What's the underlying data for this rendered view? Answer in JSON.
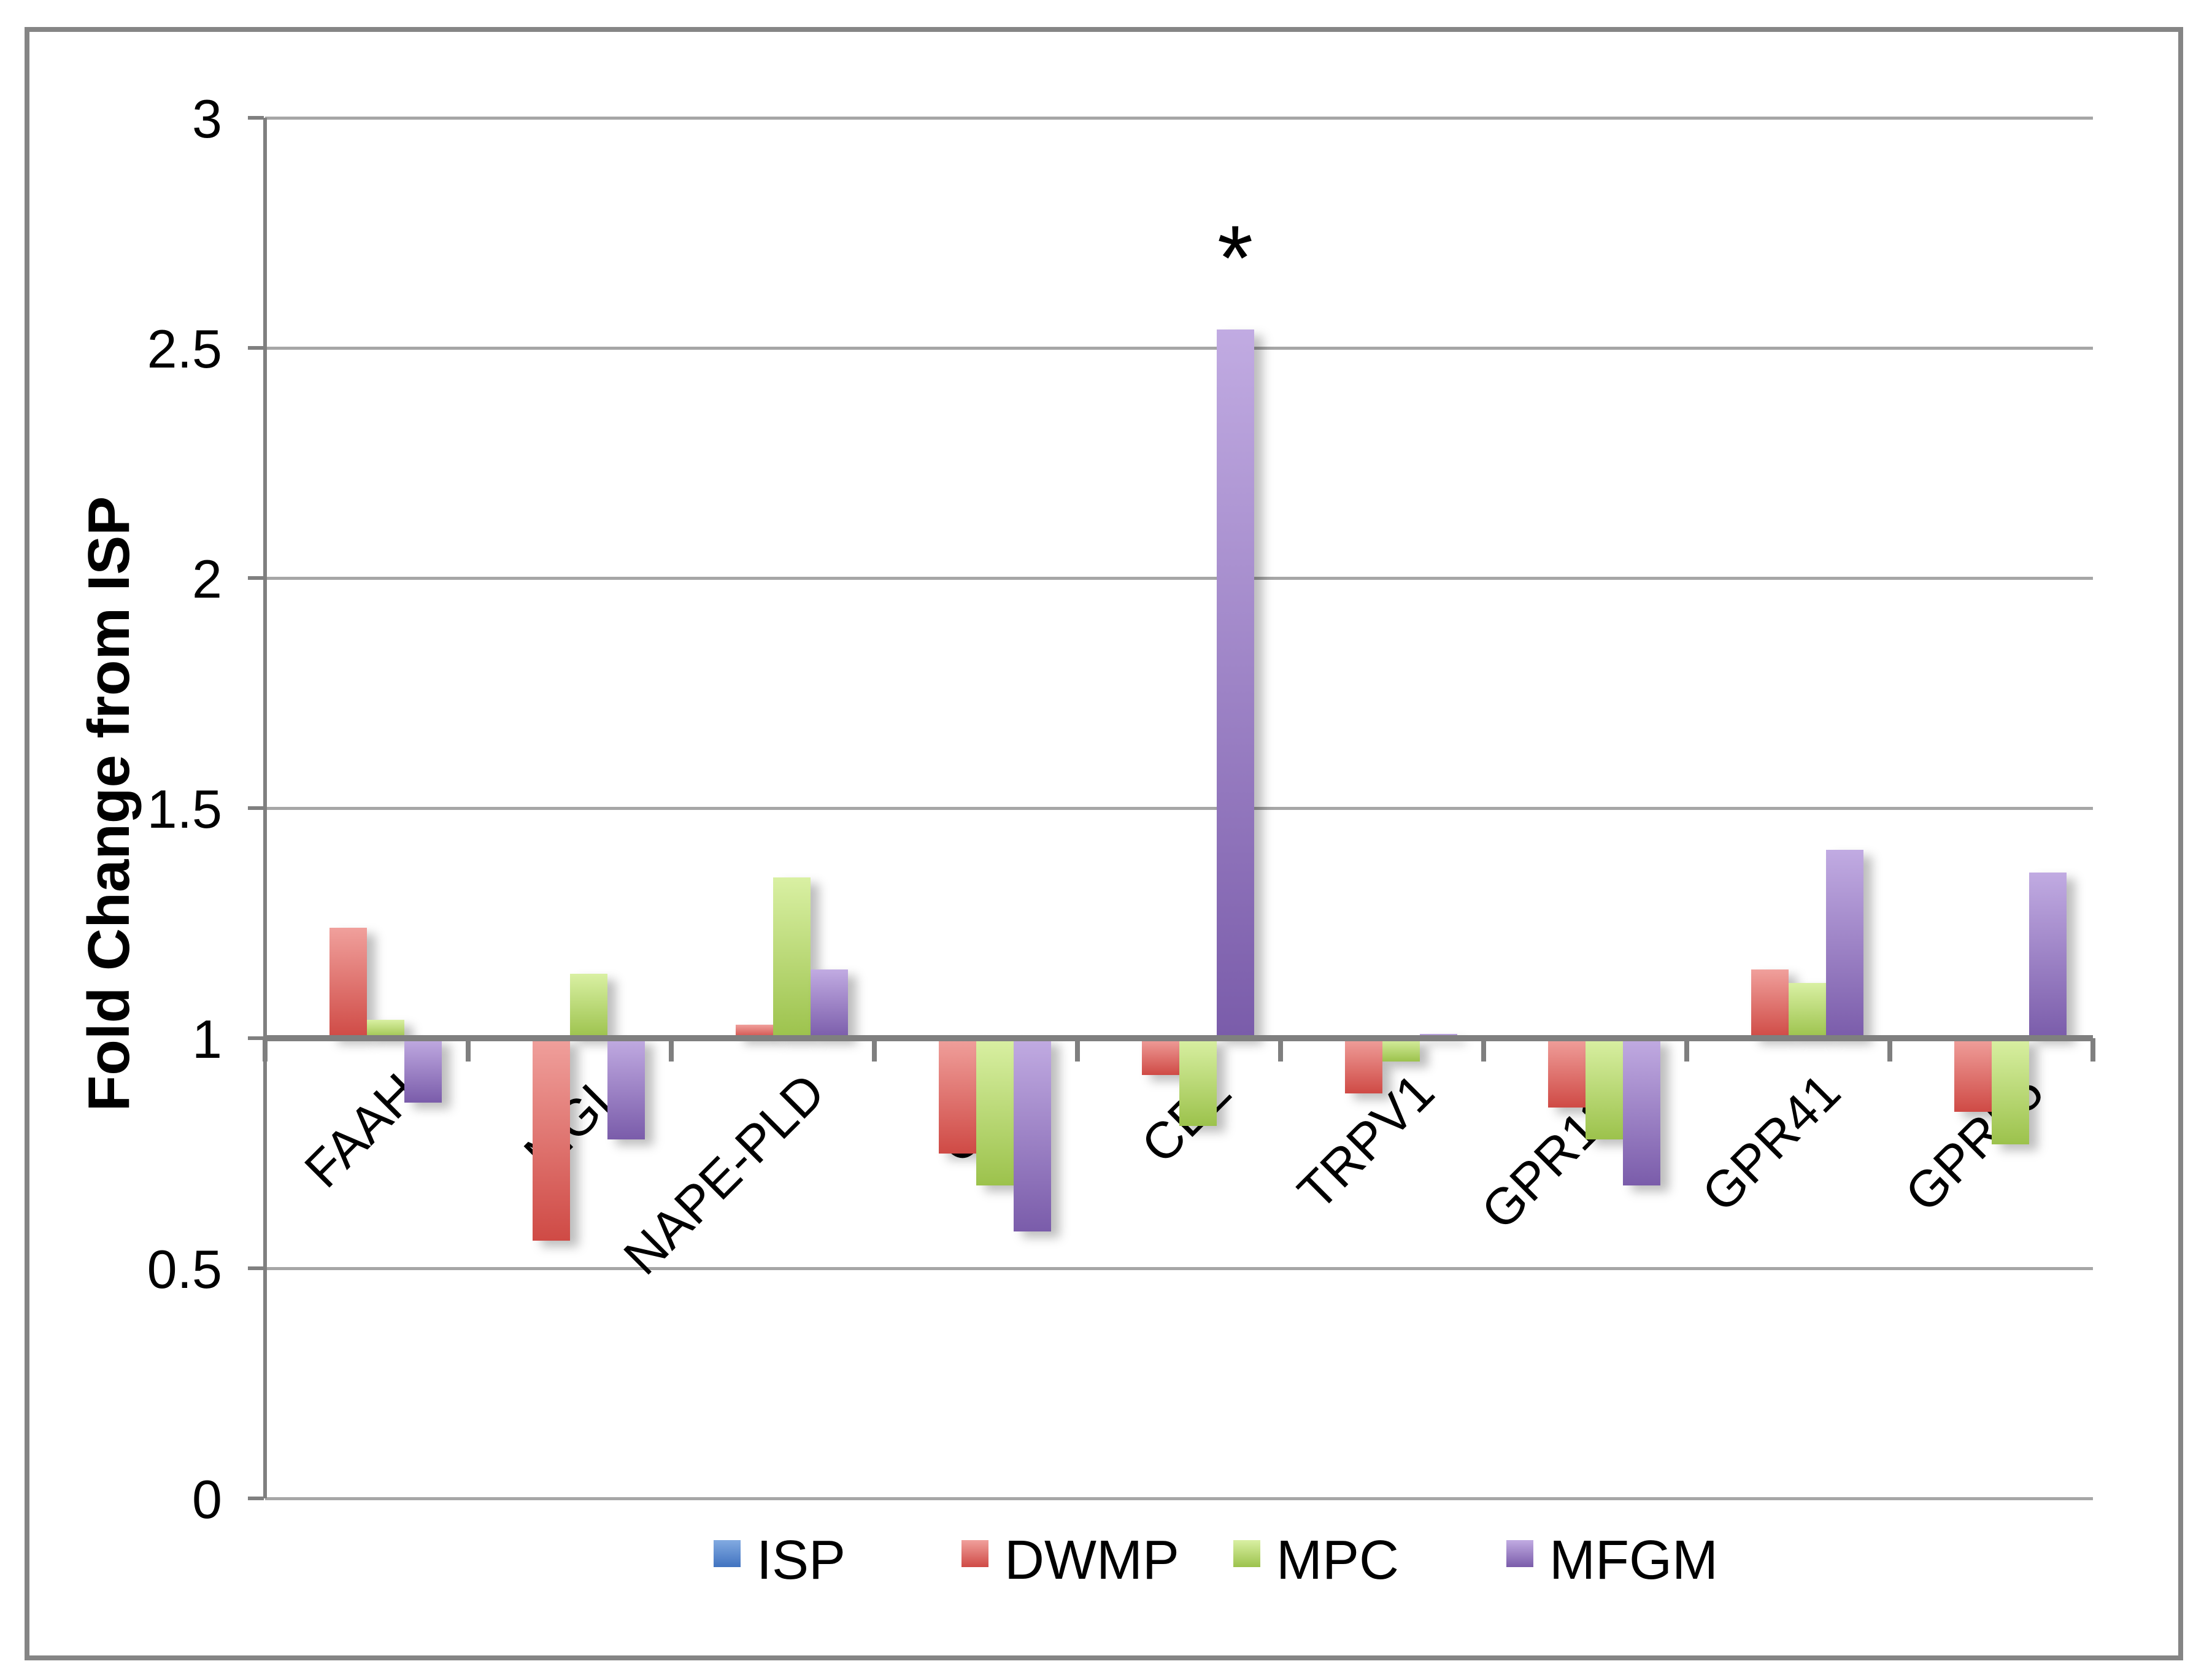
{
  "y_axis": {
    "title": "Fold Change from ISP",
    "tick_values": [
      0,
      0.5,
      1,
      1.5,
      2,
      2.5,
      3
    ],
    "tick_labels": [
      "0",
      "0.5",
      "1",
      "1.5",
      "2",
      "2.5",
      "3"
    ]
  },
  "colors": {
    "gridline": "#a6a6a6",
    "axis": "#7f7f7f",
    "frame_border": "#858585"
  },
  "chart_data": {
    "type": "bar",
    "title": "",
    "xlabel": "",
    "ylabel": "Fold Change from ISP",
    "ylim": [
      0,
      3
    ],
    "baseline": 1,
    "grid": true,
    "legend_position": "bottom",
    "categories": [
      "FAAH",
      "MGL",
      "NAPE-PLD",
      "CB1",
      "CB2",
      "TRPV1",
      "GPR119",
      "GPR41",
      "GPR55"
    ],
    "series": [
      {
        "name": "ISP",
        "color_top": "#82aae1",
        "color_bottom": "#4173c0",
        "values": [
          1.0,
          1.0,
          1.0,
          1.0,
          1.0,
          1.0,
          1.0,
          1.0,
          1.0
        ]
      },
      {
        "name": "DWMP",
        "color_top": "#f0a09c",
        "color_bottom": "#cf4a45",
        "values": [
          1.24,
          0.56,
          1.03,
          0.75,
          0.92,
          0.88,
          0.85,
          1.15,
          0.84
        ]
      },
      {
        "name": "MPC",
        "color_top": "#d9f0a3",
        "color_bottom": "#9cc24c",
        "values": [
          1.04,
          1.14,
          1.35,
          0.68,
          0.81,
          0.95,
          0.78,
          1.12,
          0.77
        ]
      },
      {
        "name": "MFGM",
        "color_top": "#c1abe2",
        "color_bottom": "#7a5caa",
        "values": [
          0.86,
          0.78,
          1.15,
          0.58,
          2.54,
          1.01,
          0.68,
          1.41,
          1.36
        ]
      }
    ],
    "annotations": [
      {
        "text": "*",
        "category": "CB2",
        "series": "MFGM",
        "y_value": 2.74
      }
    ]
  },
  "legend": {
    "items": [
      "ISP",
      "DWMP",
      "MPC",
      "MFGM"
    ]
  }
}
